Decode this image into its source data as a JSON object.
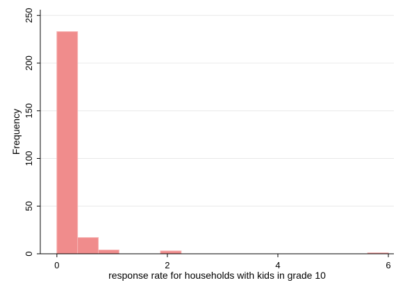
{
  "chart_data": {
    "type": "bar",
    "title": "",
    "xlabel": "response rate for households with kids in grade 10",
    "ylabel": "Frequency",
    "xlim": [
      -0.3,
      6.1
    ],
    "ylim": [
      0,
      256
    ],
    "x_ticks": [
      0,
      2,
      4,
      6
    ],
    "y_ticks": [
      0,
      50,
      100,
      150,
      200,
      250
    ],
    "grid": true,
    "legend": "none",
    "bar_color": "#f08c8c",
    "bar_edge_color": "#f6b3b3",
    "grid_color": "#e8e8e8",
    "bins": [
      {
        "x0": 0.0,
        "x1": 0.375,
        "count": 233
      },
      {
        "x0": 0.375,
        "x1": 0.75,
        "count": 17
      },
      {
        "x0": 0.75,
        "x1": 1.125,
        "count": 4
      },
      {
        "x0": 1.125,
        "x1": 1.5,
        "count": 0
      },
      {
        "x0": 1.5,
        "x1": 1.875,
        "count": 0
      },
      {
        "x0": 1.875,
        "x1": 2.25,
        "count": 3
      },
      {
        "x0": 2.25,
        "x1": 2.625,
        "count": 0
      },
      {
        "x0": 2.625,
        "x1": 3.0,
        "count": 0
      },
      {
        "x0": 3.0,
        "x1": 3.375,
        "count": 0
      },
      {
        "x0": 3.375,
        "x1": 3.75,
        "count": 0
      },
      {
        "x0": 3.75,
        "x1": 4.125,
        "count": 0
      },
      {
        "x0": 4.125,
        "x1": 4.5,
        "count": 0
      },
      {
        "x0": 4.5,
        "x1": 4.875,
        "count": 0
      },
      {
        "x0": 4.875,
        "x1": 5.25,
        "count": 0
      },
      {
        "x0": 5.25,
        "x1": 5.625,
        "count": 0
      },
      {
        "x0": 5.625,
        "x1": 6.0,
        "count": 1
      }
    ]
  }
}
